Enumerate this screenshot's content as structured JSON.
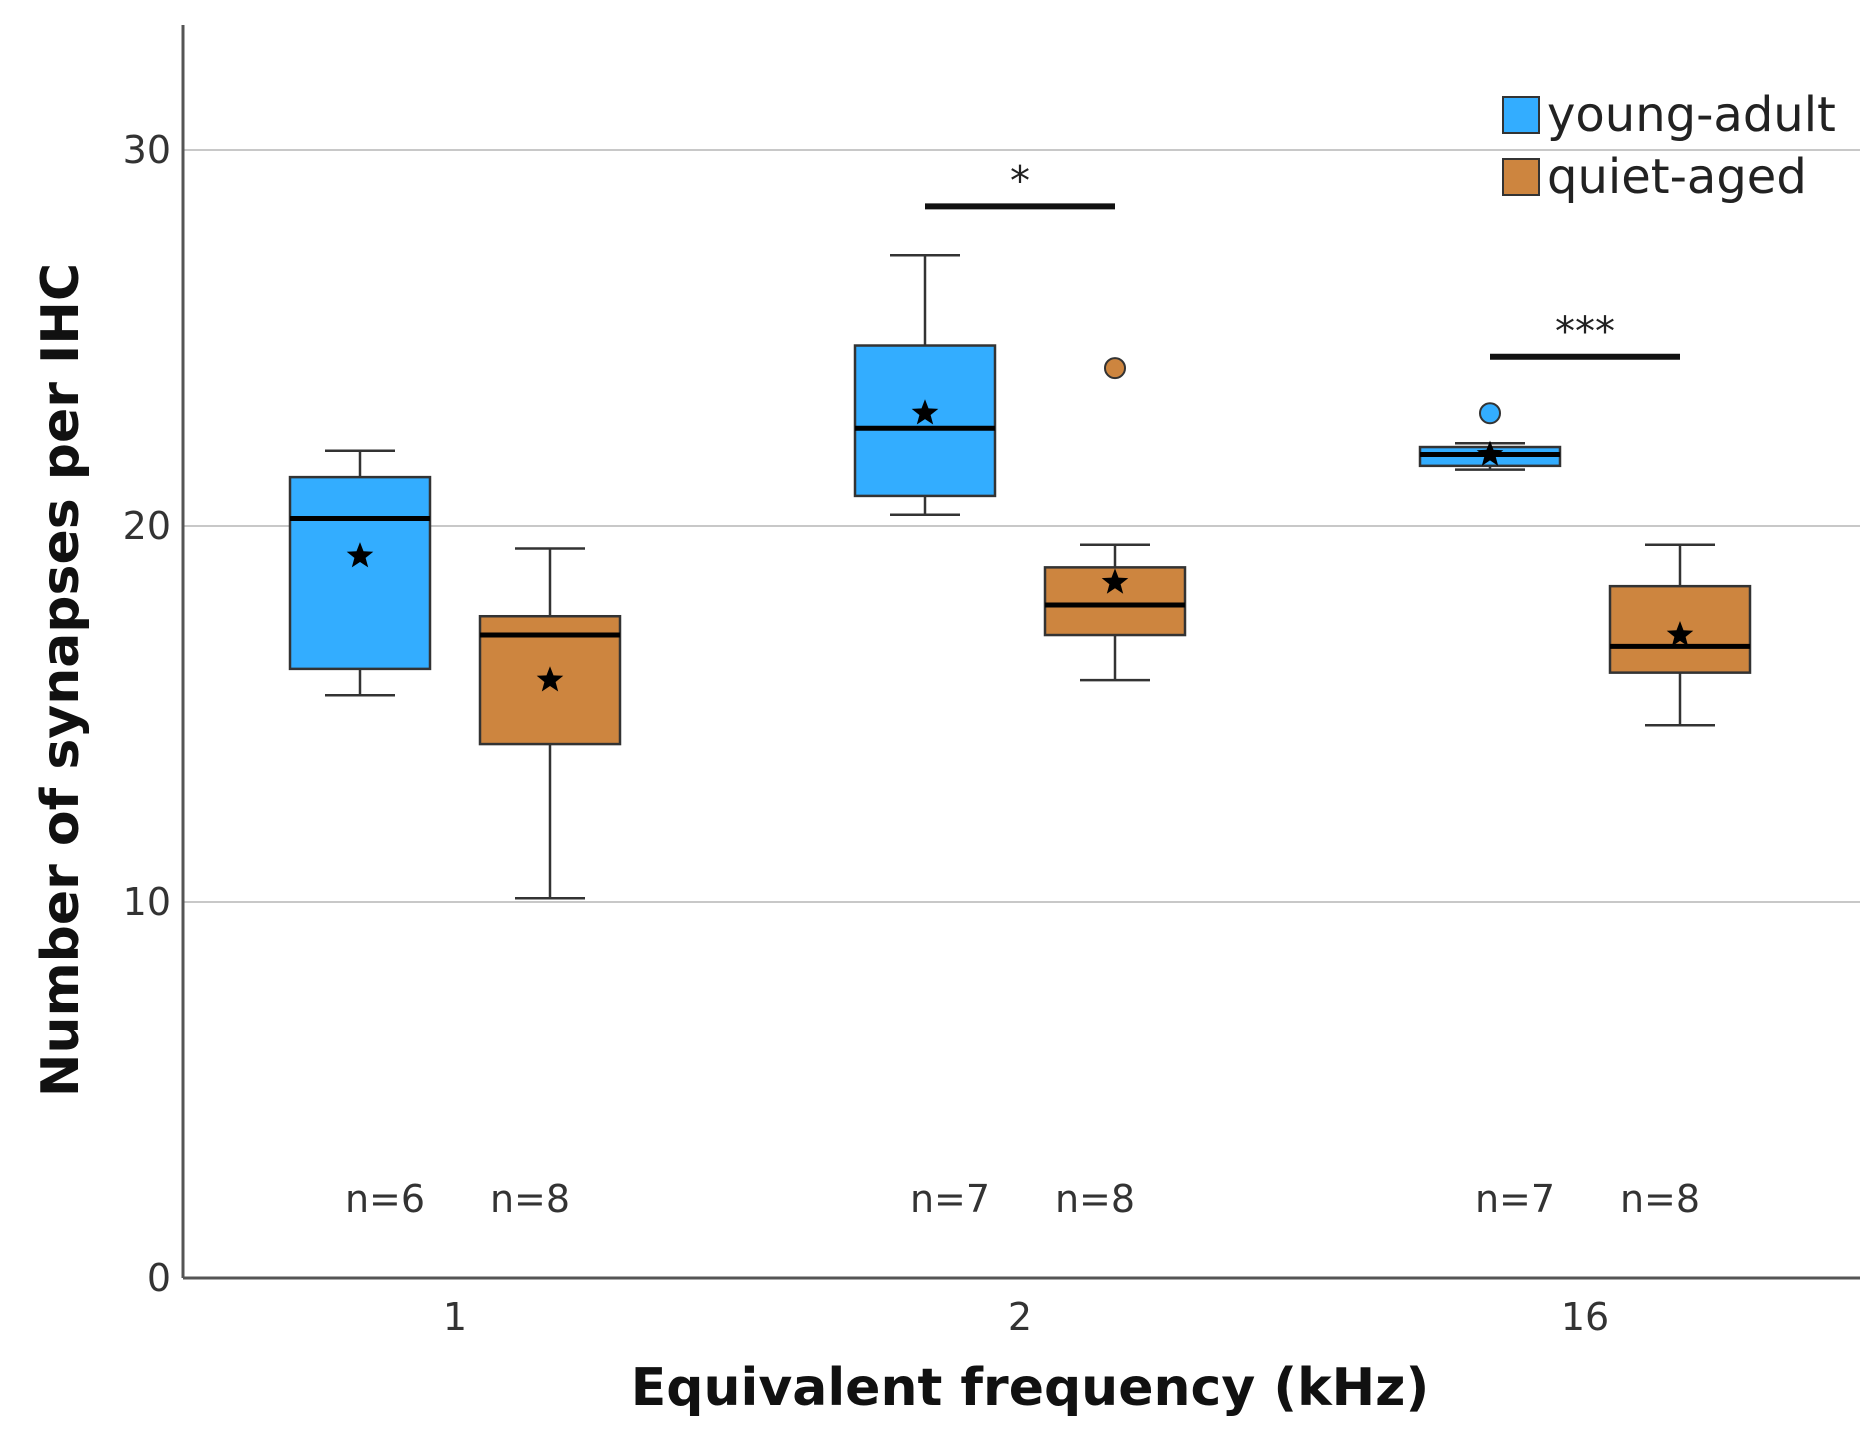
{
  "colors": {
    "young": "#33adff",
    "aged": "#cd853f",
    "grid": "#c8c8c8",
    "axis": "#555555"
  },
  "chart_data": {
    "type": "box",
    "title": "",
    "xlabel": "Equivalent frequency (kHz)",
    "ylabel": "Number of synapses per IHC",
    "ylim": [
      0,
      33
    ],
    "yticks": [
      0,
      10,
      20,
      30
    ],
    "grid": true,
    "legend_position": "top-right",
    "categories": [
      "1",
      "2",
      "16"
    ],
    "series": [
      {
        "name": "young-adult",
        "color": "#33adff",
        "boxes": [
          {
            "category": "1",
            "min": 15.5,
            "q1": 16.2,
            "median": 20.2,
            "q3": 21.3,
            "max": 22.0,
            "mean": 19.2,
            "n_label": "n=6",
            "outliers": []
          },
          {
            "category": "2",
            "min": 20.3,
            "q1": 20.8,
            "median": 22.6,
            "q3": 24.8,
            "max": 27.2,
            "mean": 23.0,
            "n_label": "n=7",
            "outliers": []
          },
          {
            "category": "16",
            "min": 21.5,
            "q1": 21.6,
            "median": 21.9,
            "q3": 22.1,
            "max": 22.2,
            "mean": 21.9,
            "n_label": "n=7",
            "outliers": [
              23.0
            ]
          }
        ]
      },
      {
        "name": "quiet-aged",
        "color": "#cd853f",
        "boxes": [
          {
            "category": "1",
            "min": 10.1,
            "q1": 14.2,
            "median": 17.1,
            "q3": 17.6,
            "max": 19.4,
            "mean": 15.9,
            "n_label": "n=8",
            "outliers": []
          },
          {
            "category": "2",
            "min": 15.9,
            "q1": 17.1,
            "median": 17.9,
            "q3": 18.9,
            "max": 19.5,
            "mean": 18.5,
            "n_label": "n=8",
            "outliers": [
              24.2
            ]
          },
          {
            "category": "16",
            "min": 14.7,
            "q1": 16.1,
            "median": 16.8,
            "q3": 18.4,
            "max": 19.5,
            "mean": 17.1,
            "n_label": "n=8",
            "outliers": []
          }
        ]
      }
    ],
    "significance": [
      {
        "category": "2",
        "label": "*",
        "y": 28.5
      },
      {
        "category": "16",
        "label": "***",
        "y": 24.5
      }
    ]
  }
}
